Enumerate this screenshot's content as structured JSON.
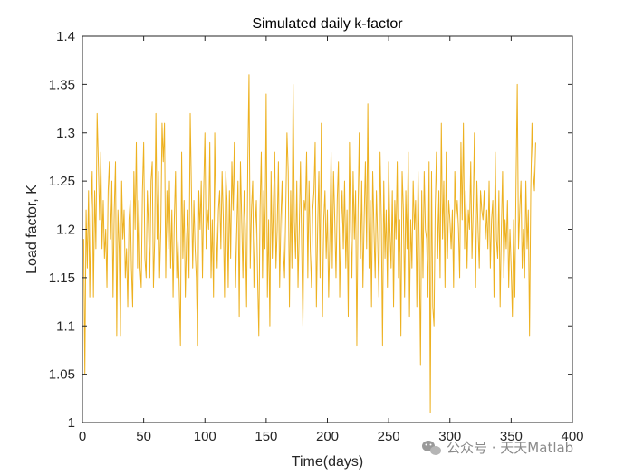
{
  "chart_data": {
    "type": "line",
    "title": "Simulated daily k-factor",
    "xlabel": "Time(days)",
    "ylabel": "Load factor, K",
    "xlim": [
      0,
      400
    ],
    "ylim": [
      1,
      1.4
    ],
    "xticks": [
      0,
      50,
      100,
      150,
      200,
      250,
      300,
      350,
      400
    ],
    "yticks": [
      1,
      1.05,
      1.1,
      1.15,
      1.2,
      1.25,
      1.3,
      1.35,
      1.4
    ],
    "xtick_labels": [
      "0",
      "50",
      "100",
      "150",
      "200",
      "250",
      "300",
      "350",
      "400"
    ],
    "ytick_labels": [
      "1",
      "1.05",
      "1.1",
      "1.15",
      "1.2",
      "1.25",
      "1.3",
      "1.35",
      "1.4"
    ],
    "grid": false,
    "series": [
      {
        "color": "#EDB120",
        "x_start": 1,
        "x_step": 1,
        "y": [
          1.19,
          1.05,
          1.22,
          1.16,
          1.24,
          1.13,
          1.22,
          1.26,
          1.13,
          1.24,
          1.18,
          1.32,
          1.27,
          1.21,
          1.28,
          1.18,
          1.23,
          1.17,
          1.2,
          1.14,
          1.24,
          1.27,
          1.19,
          1.25,
          1.13,
          1.22,
          1.27,
          1.09,
          1.22,
          1.18,
          1.09,
          1.25,
          1.19,
          1.22,
          1.15,
          1.18,
          1.12,
          1.21,
          1.23,
          1.16,
          1.12,
          1.26,
          1.2,
          1.29,
          1.16,
          1.23,
          1.16,
          1.14,
          1.24,
          1.29,
          1.17,
          1.15,
          1.24,
          1.2,
          1.15,
          1.25,
          1.27,
          1.14,
          1.19,
          1.32,
          1.19,
          1.26,
          1.15,
          1.2,
          1.31,
          1.27,
          1.31,
          1.15,
          1.24,
          1.18,
          1.25,
          1.16,
          1.22,
          1.13,
          1.21,
          1.26,
          1.15,
          1.19,
          1.14,
          1.08,
          1.28,
          1.17,
          1.23,
          1.13,
          1.19,
          1.22,
          1.15,
          1.32,
          1.24,
          1.16,
          1.23,
          1.18,
          1.15,
          1.08,
          1.24,
          1.2,
          1.25,
          1.15,
          1.24,
          1.3,
          1.18,
          1.22,
          1.2,
          1.29,
          1.15,
          1.21,
          1.13,
          1.3,
          1.21,
          1.16,
          1.22,
          1.24,
          1.18,
          1.26,
          1.21,
          1.13,
          1.26,
          1.23,
          1.14,
          1.24,
          1.17,
          1.27,
          1.22,
          1.29,
          1.14,
          1.2,
          1.25,
          1.11,
          1.27,
          1.21,
          1.15,
          1.24,
          1.2,
          1.12,
          1.27,
          1.36,
          1.16,
          1.22,
          1.25,
          1.14,
          1.2,
          1.23,
          1.15,
          1.09,
          1.22,
          1.28,
          1.15,
          1.24,
          1.18,
          1.34,
          1.13,
          1.21,
          1.1,
          1.26,
          1.17,
          1.23,
          1.28,
          1.16,
          1.2,
          1.27,
          1.14,
          1.21,
          1.25,
          1.18,
          1.15,
          1.22,
          1.3,
          1.26,
          1.12,
          1.24,
          1.16,
          1.35,
          1.21,
          1.17,
          1.25,
          1.14,
          1.2,
          1.27,
          1.18,
          1.1,
          1.23,
          1.22,
          1.28,
          1.15,
          1.25,
          1.18,
          1.14,
          1.22,
          1.24,
          1.29,
          1.12,
          1.2,
          1.26,
          1.15,
          1.31,
          1.11,
          1.21,
          1.24,
          1.17,
          1.22,
          1.13,
          1.19,
          1.28,
          1.16,
          1.26,
          1.21,
          1.15,
          1.23,
          1.27,
          1.13,
          1.2,
          1.24,
          1.18,
          1.25,
          1.16,
          1.22,
          1.11,
          1.29,
          1.2,
          1.15,
          1.26,
          1.19,
          1.24,
          1.08,
          1.22,
          1.3,
          1.17,
          1.25,
          1.14,
          1.21,
          1.27,
          1.18,
          1.33,
          1.16,
          1.23,
          1.12,
          1.26,
          1.2,
          1.15,
          1.24,
          1.19,
          1.13,
          1.28,
          1.21,
          1.08,
          1.25,
          1.17,
          1.22,
          1.14,
          1.27,
          1.2,
          1.16,
          1.24,
          1.12,
          1.23,
          1.19,
          1.27,
          1.15,
          1.21,
          1.09,
          1.26,
          1.22,
          1.13,
          1.24,
          1.18,
          1.28,
          1.11,
          1.21,
          1.16,
          1.25,
          1.2,
          1.23,
          1.12,
          1.26,
          1.18,
          1.06,
          1.24,
          1.15,
          1.26,
          1.2,
          1.19,
          1.13,
          1.27,
          1.01,
          1.26,
          1.12,
          1.1,
          1.22,
          1.28,
          1.17,
          1.24,
          1.15,
          1.31,
          1.19,
          1.25,
          1.14,
          1.28,
          1.17,
          1.23,
          1.21,
          1.18,
          1.22,
          1.14,
          1.26,
          1.21,
          1.23,
          1.2,
          1.15,
          1.29,
          1.21,
          1.31,
          1.18,
          1.24,
          1.16,
          1.22,
          1.2,
          1.27,
          1.17,
          1.22,
          1.3,
          1.14,
          1.25,
          1.2,
          1.16,
          1.24,
          1.22,
          1.21,
          1.24,
          1.19,
          1.22,
          1.18,
          1.25,
          1.16,
          1.21,
          1.23,
          1.13,
          1.28,
          1.19,
          1.17,
          1.24,
          1.12,
          1.2,
          1.26,
          1.15,
          1.21,
          1.18,
          1.23,
          1.14,
          1.2,
          1.16,
          1.11,
          1.21,
          1.13,
          1.25,
          1.35,
          1.18,
          1.22,
          1.25,
          1.16,
          1.2,
          1.15,
          1.25,
          1.18,
          1.22,
          1.09,
          1.24,
          1.31,
          1.26,
          1.24,
          1.29
        ]
      }
    ]
  },
  "watermark": {
    "text": "公众号 · 天天Matlab"
  }
}
